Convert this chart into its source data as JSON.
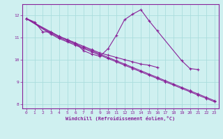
{
  "xlabel": "Windchill (Refroidissement éolien,°C)",
  "background_color": "#cff0f0",
  "grid_color": "#aadddd",
  "line_color": "#882299",
  "xlim": [
    -0.5,
    23.5
  ],
  "ylim": [
    7.8,
    12.5
  ],
  "yticks": [
    8,
    9,
    10,
    11,
    12
  ],
  "xticks": [
    0,
    1,
    2,
    3,
    4,
    5,
    6,
    7,
    8,
    9,
    10,
    11,
    12,
    13,
    14,
    15,
    16,
    17,
    18,
    19,
    20,
    21,
    22,
    23
  ],
  "series": [
    {
      "x": [
        0,
        1,
        2,
        3,
        4,
        5,
        6,
        7,
        8,
        9,
        10,
        11,
        12,
        13,
        14,
        15,
        16,
        19,
        20,
        21
      ],
      "y": [
        11.85,
        11.7,
        11.25,
        11.25,
        11.05,
        10.9,
        10.75,
        10.4,
        10.25,
        10.15,
        10.5,
        11.1,
        11.8,
        12.05,
        12.25,
        11.75,
        11.3,
        9.95,
        9.6,
        9.55
      ]
    },
    {
      "x": [
        0,
        3,
        4,
        5,
        6,
        7,
        8,
        9,
        10,
        11,
        12,
        13,
        14,
        15,
        16
      ],
      "y": [
        11.85,
        11.25,
        11.05,
        10.9,
        10.75,
        10.6,
        10.45,
        10.3,
        10.2,
        10.1,
        10.0,
        9.9,
        9.8,
        9.75,
        9.65
      ]
    },
    {
      "x": [
        0,
        3,
        4,
        5,
        6,
        7,
        8,
        9,
        10,
        11,
        12,
        13,
        14,
        15,
        16,
        17,
        18,
        19,
        20,
        21,
        22,
        23
      ],
      "y": [
        11.85,
        11.2,
        11.0,
        10.85,
        10.7,
        10.55,
        10.4,
        10.25,
        10.1,
        9.95,
        9.8,
        9.65,
        9.5,
        9.35,
        9.2,
        9.05,
        8.9,
        8.75,
        8.6,
        8.45,
        8.3,
        8.15
      ]
    },
    {
      "x": [
        0,
        3,
        4,
        5,
        6,
        7,
        8,
        9,
        10,
        11,
        12,
        13,
        14,
        15,
        16,
        17,
        18,
        19,
        20,
        21,
        22,
        23
      ],
      "y": [
        11.85,
        11.15,
        10.95,
        10.8,
        10.65,
        10.5,
        10.35,
        10.2,
        10.05,
        9.9,
        9.75,
        9.6,
        9.45,
        9.3,
        9.15,
        9.0,
        8.85,
        8.7,
        8.55,
        8.4,
        8.25,
        8.1
      ]
    }
  ]
}
